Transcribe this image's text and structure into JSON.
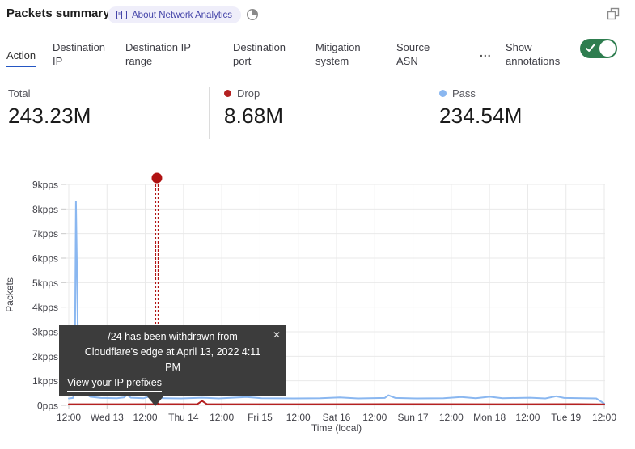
{
  "header": {
    "title": "Packets summary",
    "about_badge": "About Network Analytics"
  },
  "tabs": [
    {
      "label": "Action",
      "active": true
    },
    {
      "label": "Destination IP",
      "active": false
    },
    {
      "label": "Destination IP range",
      "active": false
    },
    {
      "label": "Destination port",
      "active": false
    },
    {
      "label": "Mitigation system",
      "active": false
    },
    {
      "label": "Source ASN",
      "active": false
    }
  ],
  "tabs_more": "...",
  "annotations_toggle": {
    "label": "Show annotations",
    "state": "on"
  },
  "stats": {
    "total": {
      "label": "Total",
      "value": "243.23M"
    },
    "drop": {
      "label": "Drop",
      "value": "8.68M",
      "color": "#b42121"
    },
    "pass": {
      "label": "Pass",
      "value": "234.54M",
      "color": "#8ab7f0"
    }
  },
  "tooltip": {
    "message_line1": "/24 has been withdrawn from",
    "message_line2": "Cloudflare's edge at April 13, 2022 4:11 PM",
    "link": "View your IP prefixes",
    "close": "✕"
  },
  "colors": {
    "toggle_on": "#2e7d4f",
    "tab_active_underline": "#2456c3",
    "badge_bg": "#efeefa",
    "badge_text": "#4343a8",
    "grid": "#e9e9e9",
    "axis_tick": "#c9c9c9"
  },
  "chart_data": {
    "type": "line",
    "ylabel": "Packets",
    "xlabel": "Time (local)",
    "y_unit": "pps",
    "y_max_pps": 9000,
    "grid": true,
    "y_ticks": [
      "0pps",
      "1kpps",
      "2kpps",
      "3kpps",
      "4kpps",
      "5kpps",
      "6kpps",
      "7kpps",
      "8kpps",
      "9kpps"
    ],
    "x_ticks": [
      "12:00",
      "Wed 13",
      "12:00",
      "Thu 14",
      "12:00",
      "Fri 15",
      "12:00",
      "Sat 16",
      "12:00",
      "Sun 17",
      "12:00",
      "Mon 18",
      "12:00",
      "Tue 19",
      "12:00"
    ],
    "series": [
      {
        "name": "Pass",
        "color": "#8ab7f0",
        "points": [
          [
            0.0,
            280
          ],
          [
            0.008,
            300
          ],
          [
            0.011,
            600
          ],
          [
            0.0135,
            8300
          ],
          [
            0.016,
            4500
          ],
          [
            0.018,
            1200
          ],
          [
            0.022,
            800
          ],
          [
            0.03,
            500
          ],
          [
            0.04,
            350
          ],
          [
            0.06,
            300
          ],
          [
            0.09,
            290
          ],
          [
            0.103,
            320
          ],
          [
            0.109,
            430
          ],
          [
            0.116,
            310
          ],
          [
            0.14,
            290
          ],
          [
            0.151,
            360
          ],
          [
            0.16,
            300
          ],
          [
            0.18,
            290
          ],
          [
            0.21,
            280
          ],
          [
            0.249,
            310
          ],
          [
            0.28,
            280
          ],
          [
            0.332,
            340
          ],
          [
            0.36,
            290
          ],
          [
            0.42,
            280
          ],
          [
            0.47,
            290
          ],
          [
            0.506,
            320
          ],
          [
            0.54,
            280
          ],
          [
            0.59,
            300
          ],
          [
            0.597,
            410
          ],
          [
            0.61,
            300
          ],
          [
            0.65,
            280
          ],
          [
            0.7,
            290
          ],
          [
            0.733,
            340
          ],
          [
            0.76,
            290
          ],
          [
            0.786,
            350
          ],
          [
            0.81,
            290
          ],
          [
            0.861,
            310
          ],
          [
            0.89,
            280
          ],
          [
            0.91,
            370
          ],
          [
            0.925,
            300
          ],
          [
            0.96,
            290
          ],
          [
            0.985,
            280
          ],
          [
            1.0,
            70
          ]
        ]
      },
      {
        "name": "Drop",
        "color": "#b42121",
        "points": [
          [
            0.0,
            45
          ],
          [
            0.1,
            45
          ],
          [
            0.2,
            50
          ],
          [
            0.24,
            45
          ],
          [
            0.249,
            180
          ],
          [
            0.258,
            45
          ],
          [
            0.4,
            45
          ],
          [
            0.6,
            50
          ],
          [
            0.8,
            45
          ],
          [
            0.95,
            50
          ],
          [
            1.0,
            40
          ]
        ]
      }
    ],
    "annotation": {
      "x_fraction": 0.1646,
      "color": "#b01212",
      "label": "IP prefix withdrawal annotation"
    }
  }
}
